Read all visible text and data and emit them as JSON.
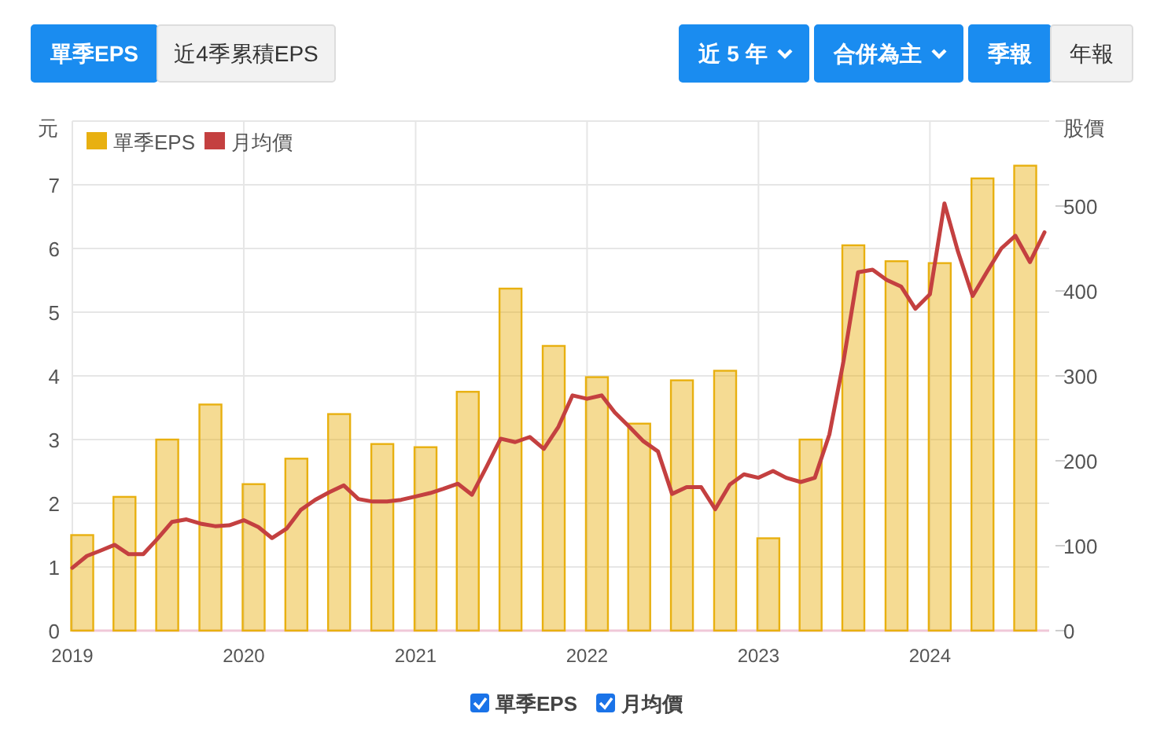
{
  "chart_data": {
    "type": "bar",
    "ylabel": "元",
    "y2label": "股價",
    "annotations": [
      "單季EPS",
      "近4季累積EPS",
      "近 5 年",
      "合併為主",
      "季報",
      "年報"
    ],
    "xlim": [
      "2019-01-01",
      "2024-09-11"
    ],
    "xticks": [
      "2019",
      "2020",
      "2021",
      "2022",
      "2023",
      "2024"
    ],
    "ylim": [
      0,
      8
    ],
    "yticks": [
      0,
      1,
      2,
      3,
      4,
      5,
      6,
      7,
      {
        "value": 8,
        "label": null
      }
    ],
    "y2lim": [
      0,
      600
    ],
    "y2ticks": [
      0,
      100,
      200,
      300,
      400,
      500,
      {
        "value": 600,
        "label": null
      }
    ],
    "grid": true,
    "legend": "top left",
    "series": [
      {
        "name": "單季EPS",
        "color": "#e8b010",
        "x": [
          "2019-01-22",
          "2019-04-22",
          "2019-07-22",
          "2019-10-22",
          "2020-01-22",
          "2020-04-22",
          "2020-07-22",
          "2020-10-22",
          "2021-01-22",
          "2021-04-22",
          "2021-07-22",
          "2021-10-22",
          "2022-01-22",
          "2022-04-22",
          "2022-07-22",
          "2022-10-22",
          "2023-01-22",
          "2023-04-22",
          "2023-07-22",
          "2023-10-22",
          "2024-01-22",
          "2024-04-22",
          "2024-07-22"
        ],
        "values": [
          1.5,
          2.1,
          3.0,
          3.55,
          2.3,
          2.7,
          3.4,
          2.93,
          2.88,
          3.75,
          5.37,
          4.47,
          3.98,
          3.25,
          3.93,
          4.08,
          1.45,
          3.0,
          6.05,
          5.8,
          5.77,
          7.1,
          7.3
        ]
      },
      {
        "name": "月均價",
        "type": "line",
        "axis": "y2",
        "color": "#c44040",
        "x": [
          "2019-01",
          "2019-02",
          "2019-03",
          "2019-04",
          "2019-05",
          "2019-06",
          "2019-07",
          "2019-08",
          "2019-09",
          "2019-10",
          "2019-11",
          "2019-12",
          "2020-01",
          "2020-02",
          "2020-03",
          "2020-04",
          "2020-05",
          "2020-06",
          "2020-07",
          "2020-08",
          "2020-09",
          "2020-10",
          "2020-11",
          "2020-12",
          "2021-01",
          "2021-02",
          "2021-03",
          "2021-04",
          "2021-05",
          "2021-06",
          "2021-07",
          "2021-08",
          "2021-09",
          "2021-10",
          "2021-11",
          "2021-12",
          "2022-01",
          "2022-02",
          "2022-03",
          "2022-04",
          "2022-05",
          "2022-06",
          "2022-07",
          "2022-08",
          "2022-09",
          "2022-10",
          "2022-11",
          "2022-12",
          "2023-01",
          "2023-02",
          "2023-03",
          "2023-04",
          "2023-05",
          "2023-06",
          "2023-07",
          "2023-08",
          "2023-09",
          "2023-10",
          "2023-11",
          "2023-12",
          "2024-01",
          "2024-02",
          "2024-03",
          "2024-04",
          "2024-05",
          "2024-06",
          "2024-07",
          "2024-08",
          "2024-09"
        ],
        "values": [
          74,
          88,
          94,
          101,
          90,
          90,
          108,
          128,
          131,
          126,
          123,
          124,
          130,
          122,
          109,
          120,
          142,
          154,
          163,
          171,
          155,
          152,
          152,
          154,
          158,
          162,
          167,
          173,
          160,
          193,
          226,
          222,
          228,
          214,
          240,
          277,
          273,
          277,
          257,
          240,
          223,
          211,
          161,
          169,
          169,
          143,
          172,
          184,
          180,
          188,
          180,
          175,
          180,
          231,
          317,
          422,
          425,
          413,
          405,
          379,
          396,
          503,
          446,
          394,
          422,
          450,
          465,
          434,
          469
        ]
      }
    ]
  }
}
